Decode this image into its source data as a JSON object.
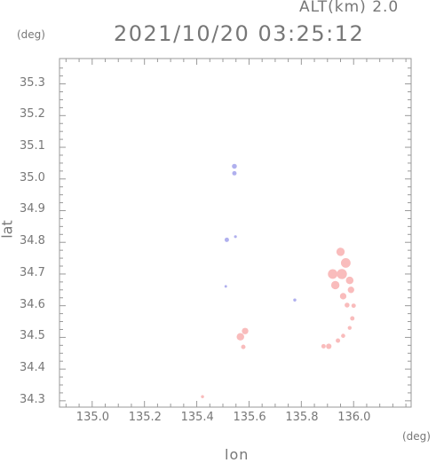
{
  "header": {
    "altitude_label": "ALT(km) 2.0",
    "timestamp": "2021/10/20 03:25:12"
  },
  "axes": {
    "y_unit": "(deg)",
    "x_unit": "(deg)",
    "xlabel": "lon",
    "ylabel": "lat",
    "x_ticks": [
      "135.0",
      "135.2",
      "135.4",
      "135.6",
      "135.8",
      "136.0"
    ],
    "y_ticks": [
      "35.3",
      "35.2",
      "35.1",
      "35.0",
      "34.9",
      "34.8",
      "34.7",
      "34.6",
      "34.5",
      "34.4",
      "34.3"
    ]
  },
  "chart_data": {
    "type": "scatter",
    "xlim": [
      134.875,
      136.22
    ],
    "ylim": [
      34.28,
      35.38
    ],
    "grid": false,
    "colors": {
      "pink": "#f9bcbc",
      "blue": "#b0b0ee",
      "axis": "#999999",
      "text": "#777777"
    },
    "echoes": [
      {
        "lon": 135.544,
        "lat": 35.04,
        "size": 0.012,
        "color": "blue"
      },
      {
        "lon": 135.544,
        "lat": 35.018,
        "size": 0.01,
        "color": "blue"
      },
      {
        "lon": 135.515,
        "lat": 34.808,
        "size": 0.01,
        "color": "blue"
      },
      {
        "lon": 135.548,
        "lat": 34.818,
        "size": 0.004,
        "color": "blue"
      },
      {
        "lon": 135.775,
        "lat": 34.618,
        "size": 0.005,
        "color": "blue"
      },
      {
        "lon": 135.511,
        "lat": 34.661,
        "size": 0.003,
        "color": "blue"
      },
      {
        "lon": 135.422,
        "lat": 34.313,
        "size": 0.005,
        "color": "pink"
      },
      {
        "lon": 135.567,
        "lat": 34.502,
        "size": 0.022,
        "color": "pink"
      },
      {
        "lon": 135.585,
        "lat": 34.52,
        "size": 0.018,
        "color": "pink"
      },
      {
        "lon": 135.578,
        "lat": 34.47,
        "size": 0.01,
        "color": "pink"
      },
      {
        "lon": 135.95,
        "lat": 34.77,
        "size": 0.025,
        "color": "pink"
      },
      {
        "lon": 135.97,
        "lat": 34.735,
        "size": 0.03,
        "color": "pink"
      },
      {
        "lon": 135.92,
        "lat": 34.7,
        "size": 0.03,
        "color": "pink"
      },
      {
        "lon": 135.955,
        "lat": 34.7,
        "size": 0.032,
        "color": "pink"
      },
      {
        "lon": 135.93,
        "lat": 34.665,
        "size": 0.025,
        "color": "pink"
      },
      {
        "lon": 135.985,
        "lat": 34.68,
        "size": 0.022,
        "color": "pink"
      },
      {
        "lon": 135.99,
        "lat": 34.65,
        "size": 0.018,
        "color": "pink"
      },
      {
        "lon": 135.96,
        "lat": 34.63,
        "size": 0.018,
        "color": "pink"
      },
      {
        "lon": 135.975,
        "lat": 34.602,
        "size": 0.012,
        "color": "pink"
      },
      {
        "lon": 136.0,
        "lat": 34.6,
        "size": 0.01,
        "color": "pink"
      },
      {
        "lon": 135.995,
        "lat": 34.56,
        "size": 0.01,
        "color": "pink"
      },
      {
        "lon": 135.985,
        "lat": 34.53,
        "size": 0.008,
        "color": "pink"
      },
      {
        "lon": 135.96,
        "lat": 34.505,
        "size": 0.009,
        "color": "pink"
      },
      {
        "lon": 135.94,
        "lat": 34.49,
        "size": 0.01,
        "color": "pink"
      },
      {
        "lon": 135.905,
        "lat": 34.472,
        "size": 0.014,
        "color": "pink"
      },
      {
        "lon": 135.885,
        "lat": 34.472,
        "size": 0.01,
        "color": "pink"
      }
    ]
  }
}
